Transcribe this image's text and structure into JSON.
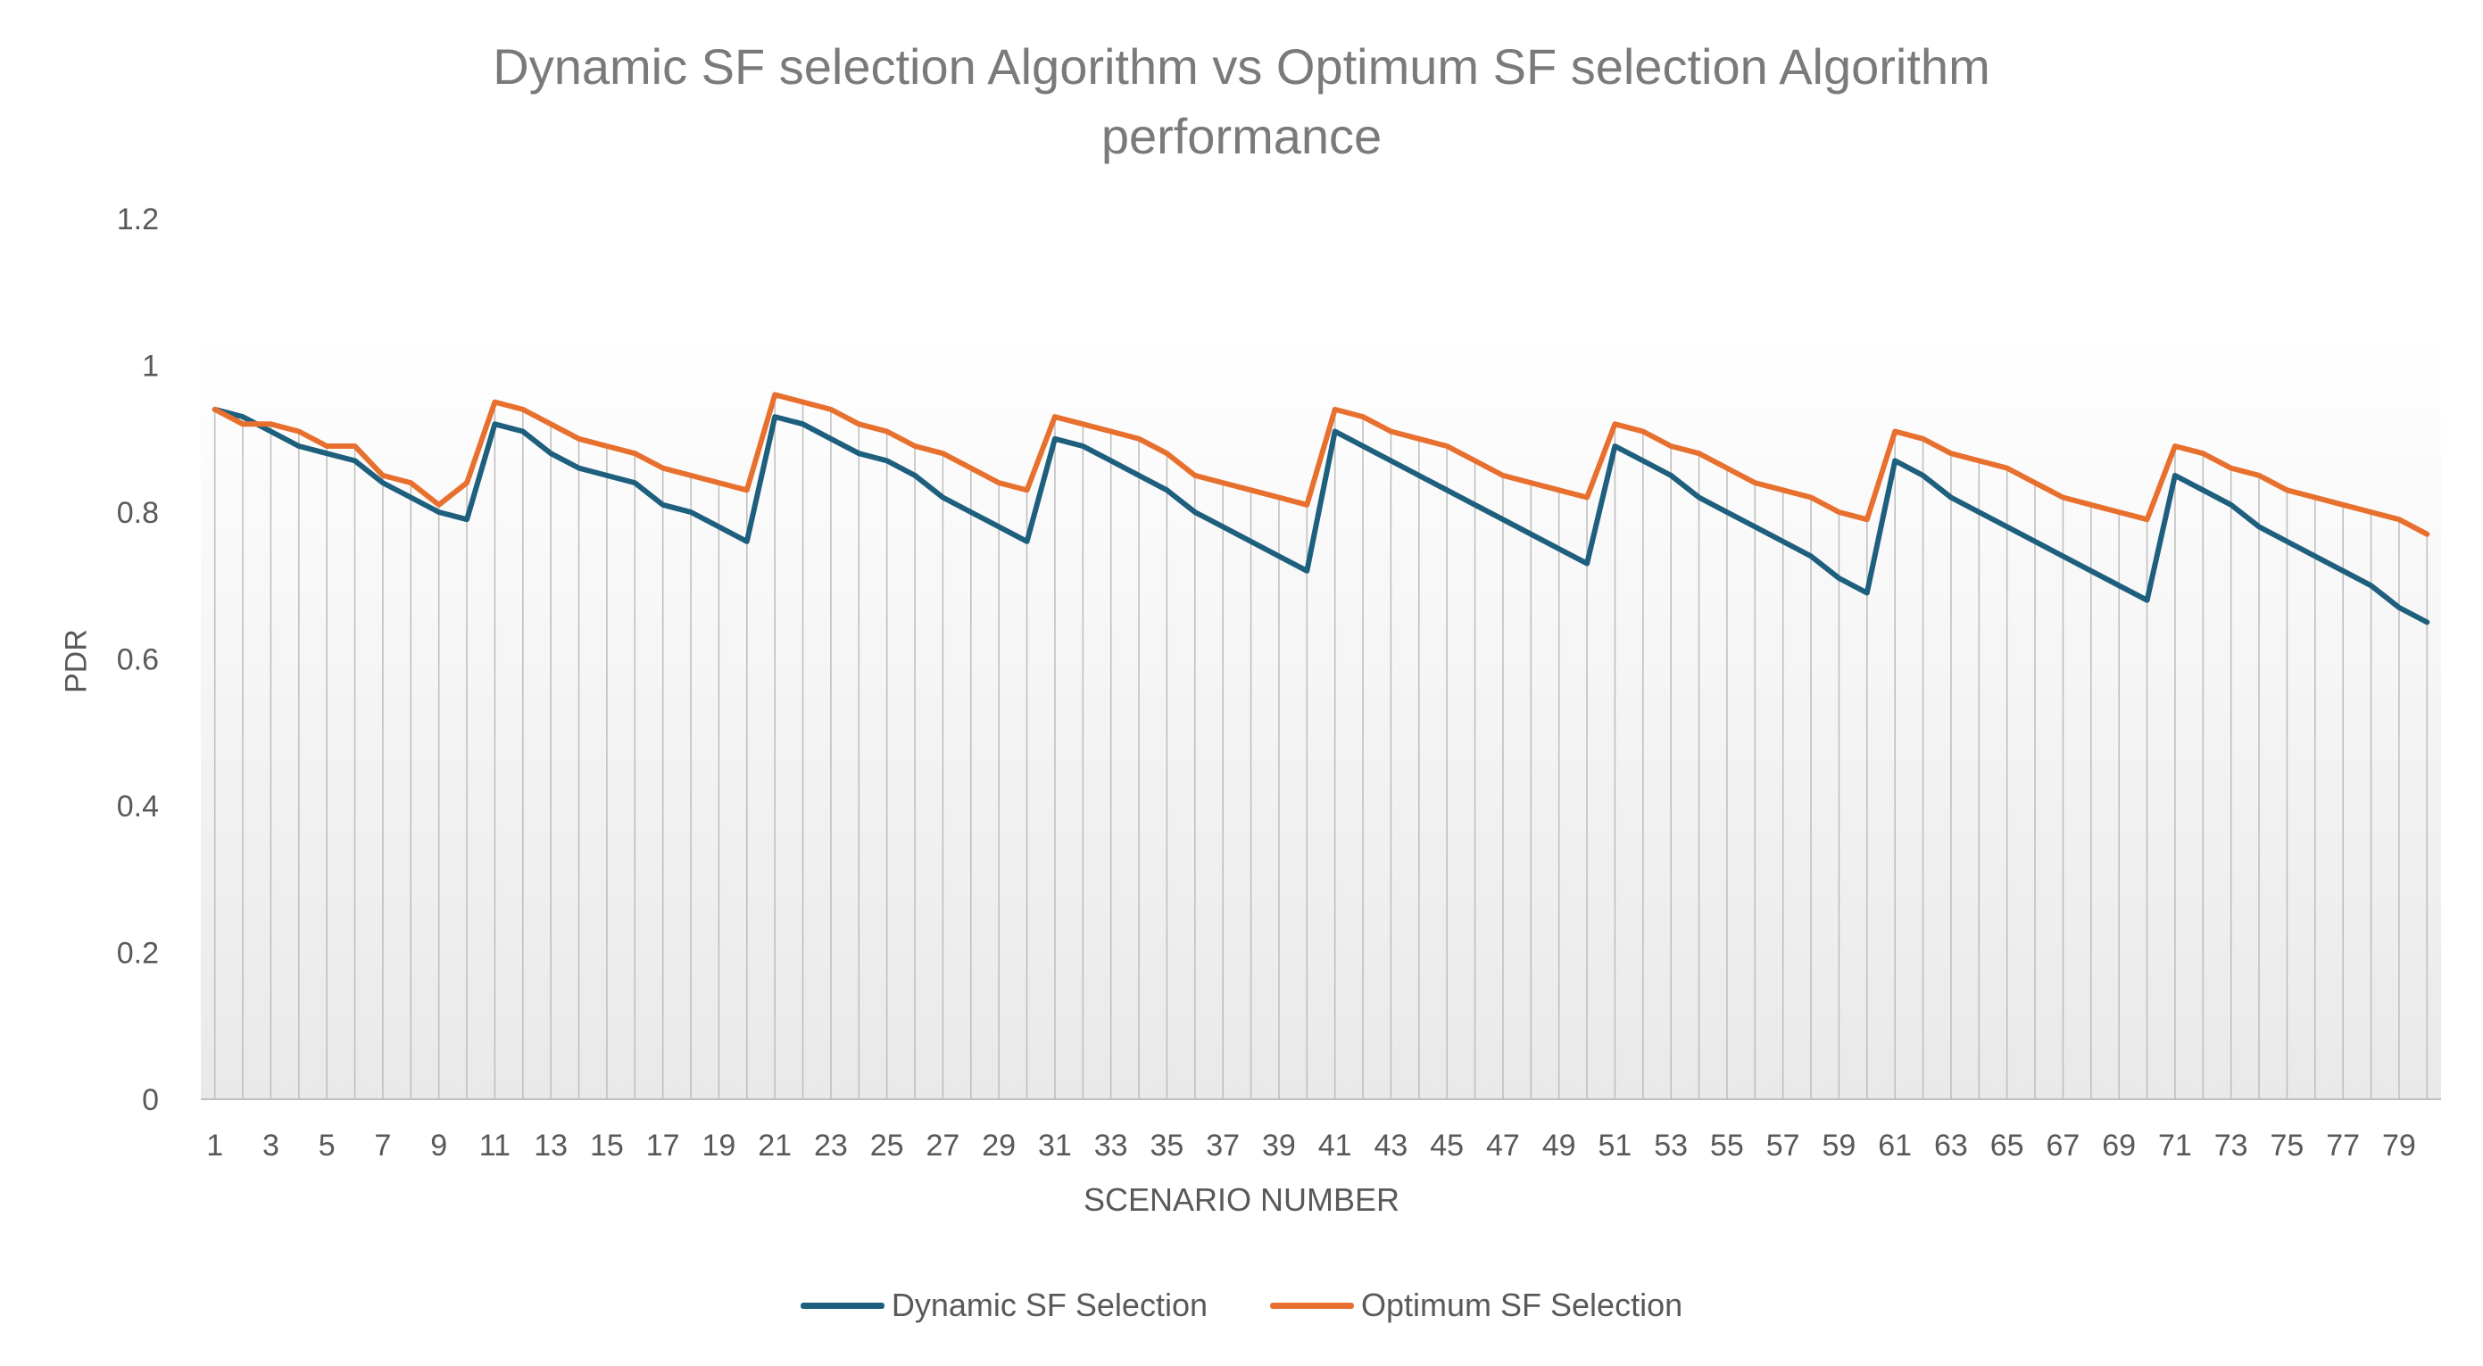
{
  "chart_data": {
    "type": "line",
    "title_line1": "Dynamic SF selection Algorithm vs Optimum SF selection Algorithm",
    "title_line2": "performance",
    "xlabel": "SCENARIO NUMBER",
    "ylabel": "PDR",
    "ylim": [
      0,
      1.2
    ],
    "yticks": [
      "0",
      "0.2",
      "0.4",
      "0.6",
      "0.8",
      "1",
      "1.2"
    ],
    "x": [
      1,
      2,
      3,
      4,
      5,
      6,
      7,
      8,
      9,
      10,
      11,
      12,
      13,
      14,
      15,
      16,
      17,
      18,
      19,
      20,
      21,
      22,
      23,
      24,
      25,
      26,
      27,
      28,
      29,
      30,
      31,
      32,
      33,
      34,
      35,
      36,
      37,
      38,
      39,
      40,
      41,
      42,
      43,
      44,
      45,
      46,
      47,
      48,
      49,
      50,
      51,
      52,
      53,
      54,
      55,
      56,
      57,
      58,
      59,
      60,
      61,
      62,
      63,
      64,
      65,
      66,
      67,
      68,
      69,
      70,
      71,
      72,
      73,
      74,
      75,
      76,
      77,
      78,
      79,
      80
    ],
    "xtick_labels": [
      "1",
      "3",
      "5",
      "7",
      "9",
      "11",
      "13",
      "15",
      "17",
      "19",
      "21",
      "23",
      "25",
      "27",
      "29",
      "31",
      "33",
      "35",
      "37",
      "39",
      "41",
      "43",
      "45",
      "47",
      "49",
      "51",
      "53",
      "55",
      "57",
      "59",
      "61",
      "63",
      "65",
      "67",
      "69",
      "71",
      "73",
      "75",
      "77",
      "79"
    ],
    "series": [
      {
        "name": "Dynamic SF Selection",
        "color": "#1f5f7e",
        "values": [
          0.94,
          0.93,
          0.91,
          0.89,
          0.88,
          0.87,
          0.84,
          0.82,
          0.8,
          0.79,
          0.92,
          0.91,
          0.88,
          0.86,
          0.85,
          0.84,
          0.81,
          0.8,
          0.78,
          0.76,
          0.93,
          0.92,
          0.9,
          0.88,
          0.87,
          0.85,
          0.82,
          0.8,
          0.78,
          0.76,
          0.9,
          0.89,
          0.87,
          0.85,
          0.83,
          0.8,
          0.78,
          0.76,
          0.74,
          0.72,
          0.91,
          0.89,
          0.87,
          0.85,
          0.83,
          0.81,
          0.79,
          0.77,
          0.75,
          0.73,
          0.89,
          0.87,
          0.85,
          0.82,
          0.8,
          0.78,
          0.76,
          0.74,
          0.71,
          0.69,
          0.87,
          0.85,
          0.82,
          0.8,
          0.78,
          0.76,
          0.74,
          0.72,
          0.7,
          0.68,
          0.85,
          0.83,
          0.81,
          0.78,
          0.76,
          0.74,
          0.72,
          0.7,
          0.67,
          0.65
        ]
      },
      {
        "name": "Optimum SF Selection",
        "color": "#e8702f",
        "values": [
          0.94,
          0.92,
          0.92,
          0.91,
          0.89,
          0.89,
          0.85,
          0.84,
          0.81,
          0.84,
          0.95,
          0.94,
          0.92,
          0.9,
          0.89,
          0.88,
          0.86,
          0.85,
          0.84,
          0.83,
          0.96,
          0.95,
          0.94,
          0.92,
          0.91,
          0.89,
          0.88,
          0.86,
          0.84,
          0.83,
          0.93,
          0.92,
          0.91,
          0.9,
          0.88,
          0.85,
          0.84,
          0.83,
          0.82,
          0.81,
          0.94,
          0.93,
          0.91,
          0.9,
          0.89,
          0.87,
          0.85,
          0.84,
          0.83,
          0.82,
          0.92,
          0.91,
          0.89,
          0.88,
          0.86,
          0.84,
          0.83,
          0.82,
          0.8,
          0.79,
          0.91,
          0.9,
          0.88,
          0.87,
          0.86,
          0.84,
          0.82,
          0.81,
          0.8,
          0.79,
          0.89,
          0.88,
          0.86,
          0.85,
          0.83,
          0.82,
          0.81,
          0.8,
          0.79,
          0.77
        ]
      }
    ]
  }
}
